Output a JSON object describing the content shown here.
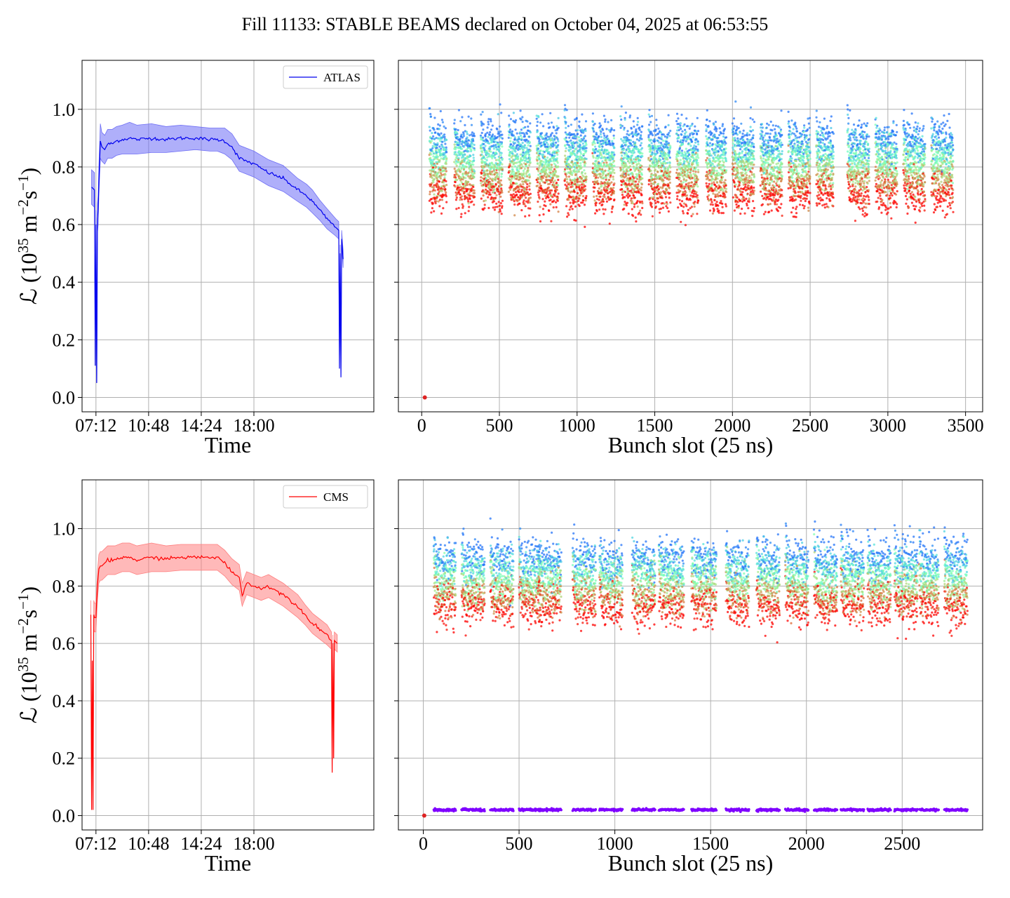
{
  "figure": {
    "title": "Fill 11133: STABLE BEAMS declared on October 04, 2025 at 06:53:55"
  },
  "colors": {
    "atlas": "#0000ee",
    "atlas_band": "#6e6ef5",
    "cms": "#ff0000",
    "cms_band": "#ff7f7f",
    "grid": "#b0b0b0"
  },
  "chart_data": [
    {
      "type": "line",
      "panel": "top-left",
      "xlabel": "Time",
      "ylabel_main": "ℒ (10",
      "ylabel_exp1": "35",
      "ylabel_mid": " m",
      "ylabel_exp2": "−2",
      "ylabel_mid2": "s",
      "ylabel_exp3": "−1",
      "ylabel_end": ")",
      "x_unit": "hours of day",
      "xlim": [
        6.25,
        26.2
      ],
      "ylim": [
        -0.05,
        1.17
      ],
      "xticks": [
        7.2,
        10.8,
        14.4,
        18.0
      ],
      "xtick_labels": [
        "07:12",
        "10:48",
        "14:24",
        "18:00"
      ],
      "yticks": [
        0.0,
        0.2,
        0.4,
        0.6,
        0.8,
        1.0
      ],
      "ytick_labels": [
        "0.0",
        "0.2",
        "0.4",
        "0.6",
        "0.8",
        "1.0"
      ],
      "grid": true,
      "legend": "top-right",
      "series": [
        {
          "name": "ATLAS",
          "x": [
            6.9,
            7.1,
            7.15,
            7.2,
            7.25,
            7.3,
            7.35,
            7.4,
            7.5,
            7.6,
            7.8,
            8.0,
            8.3,
            8.6,
            9.0,
            9.5,
            10.0,
            11.0,
            12.0,
            13.0,
            14.0,
            15.0,
            15.5,
            16.0,
            16.5,
            17.0,
            18.0,
            19.0,
            20.0,
            21.0,
            21.6,
            22.0,
            22.5,
            23.0,
            23.6,
            23.8,
            23.85,
            23.9,
            23.95,
            24.0,
            24.1
          ],
          "y": [
            0.73,
            0.72,
            0.11,
            0.6,
            0.05,
            0.62,
            0.65,
            0.75,
            0.89,
            0.87,
            0.86,
            0.88,
            0.88,
            0.89,
            0.895,
            0.9,
            0.895,
            0.9,
            0.895,
            0.9,
            0.9,
            0.895,
            0.895,
            0.89,
            0.87,
            0.83,
            0.81,
            0.78,
            0.76,
            0.72,
            0.7,
            0.68,
            0.65,
            0.62,
            0.59,
            0.58,
            0.1,
            0.5,
            0.07,
            0.55,
            0.48
          ],
          "band_half_width": [
            0.06,
            0.06,
            0.0,
            0.05,
            0.0,
            0.05,
            0.05,
            0.05,
            0.06,
            0.05,
            0.05,
            0.05,
            0.05,
            0.05,
            0.05,
            0.055,
            0.05,
            0.05,
            0.045,
            0.045,
            0.04,
            0.04,
            0.04,
            0.045,
            0.045,
            0.045,
            0.045,
            0.045,
            0.045,
            0.04,
            0.04,
            0.04,
            0.035,
            0.035,
            0.03,
            0.03,
            0.0,
            0.03,
            0.0,
            0.03,
            0.03
          ]
        }
      ]
    },
    {
      "type": "scatter",
      "panel": "top-right",
      "xlabel": "Bunch slot (25 ns)",
      "xlim": [
        -150,
        3610
      ],
      "ylim": [
        -0.05,
        1.17
      ],
      "xticks": [
        0,
        500,
        1000,
        1500,
        2000,
        2500,
        3000,
        3500
      ],
      "xtick_labels": [
        "0",
        "500",
        "1000",
        "1500",
        "2000",
        "2500",
        "3000",
        "3500"
      ],
      "yticks": [
        0.0,
        0.2,
        0.4,
        0.6,
        0.8,
        1.0
      ],
      "grid": true,
      "colormap": "rainbow (colour = measurement time, early purple to late red)",
      "trains": [
        {
          "start": 50,
          "end": 160
        },
        {
          "start": 210,
          "end": 340
        },
        {
          "start": 380,
          "end": 520
        },
        {
          "start": 560,
          "end": 700
        },
        {
          "start": 740,
          "end": 880
        },
        {
          "start": 920,
          "end": 1060
        },
        {
          "start": 1100,
          "end": 1240
        },
        {
          "start": 1280,
          "end": 1420
        },
        {
          "start": 1460,
          "end": 1600
        },
        {
          "start": 1640,
          "end": 1780
        },
        {
          "start": 1830,
          "end": 1960
        },
        {
          "start": 2000,
          "end": 2140
        },
        {
          "start": 2180,
          "end": 2320
        },
        {
          "start": 2360,
          "end": 2500
        },
        {
          "start": 2540,
          "end": 2650
        },
        {
          "start": 2740,
          "end": 2880
        },
        {
          "start": 2920,
          "end": 3060
        },
        {
          "start": 3100,
          "end": 3240
        },
        {
          "start": 3280,
          "end": 3420
        }
      ],
      "level_early": 0.9,
      "level_late": 0.7,
      "outlier_points": [
        {
          "x": 20,
          "y": 0.0
        }
      ],
      "baseline_level": null
    },
    {
      "type": "line",
      "panel": "bottom-left",
      "xlabel": "Time",
      "ylabel_main": "ℒ (10",
      "ylabel_exp1": "35",
      "ylabel_mid": " m",
      "ylabel_exp2": "−2",
      "ylabel_mid2": "s",
      "ylabel_exp3": "−1",
      "ylabel_end": ")",
      "x_unit": "hours of day",
      "xlim": [
        6.25,
        26.2
      ],
      "ylim": [
        -0.05,
        1.17
      ],
      "xticks": [
        7.2,
        10.8,
        14.4,
        18.0
      ],
      "xtick_labels": [
        "07:12",
        "10:48",
        "14:24",
        "18:00"
      ],
      "yticks": [
        0.0,
        0.2,
        0.4,
        0.6,
        0.8,
        1.0
      ],
      "ytick_labels": [
        "0.0",
        "0.2",
        "0.4",
        "0.6",
        "0.8",
        "1.0"
      ],
      "grid": true,
      "legend": "top-right",
      "series": [
        {
          "name": "CMS",
          "x": [
            6.85,
            6.9,
            6.95,
            7.0,
            7.05,
            7.1,
            7.2,
            7.3,
            7.4,
            7.5,
            7.6,
            7.8,
            8.0,
            8.5,
            9.0,
            9.5,
            10.0,
            11.0,
            12.0,
            13.0,
            14.0,
            15.0,
            15.5,
            16.0,
            16.5,
            17.0,
            17.2,
            17.5,
            18.0,
            18.5,
            19.0,
            20.0,
            21.0,
            21.5,
            22.0,
            22.5,
            23.0,
            23.3,
            23.35,
            23.4,
            23.45,
            23.5,
            23.7
          ],
          "y": [
            0.7,
            0.02,
            0.54,
            0.02,
            0.7,
            0.69,
            0.69,
            0.8,
            0.86,
            0.87,
            0.87,
            0.88,
            0.89,
            0.89,
            0.9,
            0.9,
            0.89,
            0.9,
            0.895,
            0.9,
            0.9,
            0.9,
            0.9,
            0.88,
            0.85,
            0.83,
            0.77,
            0.81,
            0.8,
            0.79,
            0.8,
            0.77,
            0.73,
            0.7,
            0.67,
            0.65,
            0.63,
            0.61,
            0.15,
            0.6,
            0.2,
            0.61,
            0.6
          ],
          "band_half_width": [
            0.05,
            0.0,
            0.0,
            0.0,
            0.05,
            0.05,
            0.05,
            0.05,
            0.05,
            0.05,
            0.05,
            0.05,
            0.05,
            0.05,
            0.05,
            0.05,
            0.05,
            0.05,
            0.045,
            0.045,
            0.045,
            0.045,
            0.045,
            0.045,
            0.045,
            0.045,
            0.04,
            0.04,
            0.04,
            0.04,
            0.04,
            0.04,
            0.04,
            0.035,
            0.035,
            0.035,
            0.035,
            0.03,
            0.0,
            0.03,
            0.0,
            0.03,
            0.03
          ]
        }
      ]
    },
    {
      "type": "scatter",
      "panel": "bottom-right",
      "xlabel": "Bunch slot (25 ns)",
      "xlim": [
        -130,
        2920
      ],
      "ylim": [
        -0.05,
        1.17
      ],
      "xticks": [
        0,
        500,
        1000,
        1500,
        2000,
        2500
      ],
      "xtick_labels": [
        "0",
        "500",
        "1000",
        "1500",
        "2000",
        "2500"
      ],
      "yticks": [
        0.0,
        0.2,
        0.4,
        0.6,
        0.8,
        1.0
      ],
      "grid": true,
      "colormap": "rainbow (colour = measurement time, early purple to late red)",
      "trains": [
        {
          "start": 55,
          "end": 170
        },
        {
          "start": 200,
          "end": 320
        },
        {
          "start": 350,
          "end": 470
        },
        {
          "start": 500,
          "end": 610
        },
        {
          "start": 600,
          "end": 720
        },
        {
          "start": 780,
          "end": 900
        },
        {
          "start": 920,
          "end": 1040
        },
        {
          "start": 1090,
          "end": 1210
        },
        {
          "start": 1230,
          "end": 1360
        },
        {
          "start": 1400,
          "end": 1530
        },
        {
          "start": 1580,
          "end": 1700
        },
        {
          "start": 1740,
          "end": 1860
        },
        {
          "start": 1890,
          "end": 2010
        },
        {
          "start": 2040,
          "end": 2160
        },
        {
          "start": 2180,
          "end": 2300
        },
        {
          "start": 2320,
          "end": 2440
        },
        {
          "start": 2460,
          "end": 2580
        },
        {
          "start": 2590,
          "end": 2690
        },
        {
          "start": 2720,
          "end": 2840
        }
      ],
      "level_early": 0.9,
      "level_late": 0.72,
      "outlier_points": [
        {
          "x": 5,
          "y": 0.0
        }
      ],
      "baseline_level": 0.02
    }
  ]
}
